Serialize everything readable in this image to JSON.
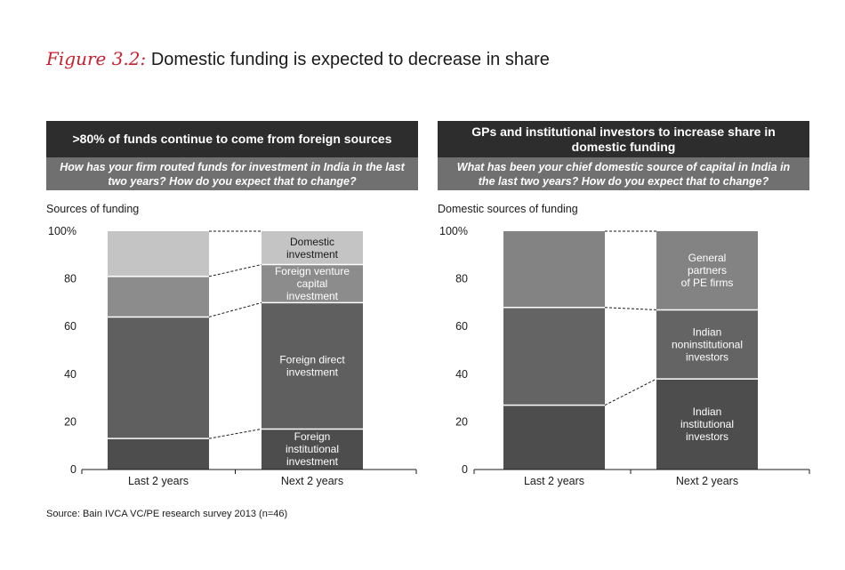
{
  "figure": {
    "label": "Figure 3.2:",
    "title": "Domestic funding is expected to decrease in share"
  },
  "panels": [
    {
      "header": ">80% of funds continue to come from foreign sources",
      "question": "How has your firm routed funds for investment in India in the last two years? How do you expect that to change?"
    },
    {
      "header": "GPs and institutional investors to increase share in domestic funding",
      "question": "What has been your chief domestic source of capital in India in the last two years? How do you expect that to change?"
    }
  ],
  "source": "Source: Bain IVCA VC/PE research survey 2013 (n=46)",
  "chart_data": [
    {
      "type": "bar",
      "stacked": true,
      "ylabel": "Sources of funding",
      "ylim": [
        0,
        100
      ],
      "ytick_labels": [
        "0",
        "20",
        "40",
        "60",
        "80",
        "100%"
      ],
      "categories": [
        "Last 2 years",
        "Next 2 years"
      ],
      "series": [
        {
          "name": "Foreign institutional investment",
          "values": [
            13,
            17
          ],
          "color": "#4d4d4d",
          "label_lines": [
            "Foreign",
            "institutional",
            "investment"
          ]
        },
        {
          "name": "Foreign direct investment",
          "values": [
            51,
            53
          ],
          "color": "#5f5f5f",
          "label_lines": [
            "Foreign direct",
            "investment"
          ]
        },
        {
          "name": "Foreign venture capital investment",
          "values": [
            17,
            16
          ],
          "color": "#8c8c8c",
          "label_lines": [
            "Foreign venture",
            "capital",
            "investment"
          ]
        },
        {
          "name": "Domestic investment",
          "values": [
            19,
            14
          ],
          "color": "#c4c4c4",
          "label_lines": [
            "Domestic",
            "investment"
          ]
        }
      ]
    },
    {
      "type": "bar",
      "stacked": true,
      "ylabel": "Domestic sources of funding",
      "ylim": [
        0,
        100
      ],
      "ytick_labels": [
        "0",
        "20",
        "40",
        "60",
        "80",
        "100%"
      ],
      "categories": [
        "Last 2 years",
        "Next 2 years"
      ],
      "series": [
        {
          "name": "Indian institutional investors",
          "values": [
            27,
            38
          ],
          "color": "#4d4d4d",
          "label_lines": [
            "Indian",
            "institutional",
            "investors"
          ]
        },
        {
          "name": "Indian noninstitutional investors",
          "values": [
            41,
            29
          ],
          "color": "#646464",
          "label_lines": [
            "Indian",
            "noninstitutional",
            "investors"
          ]
        },
        {
          "name": "General partners of PE firms",
          "values": [
            32,
            33
          ],
          "color": "#838383",
          "label_lines": [
            "General",
            "partners",
            "of PE firms"
          ]
        }
      ]
    }
  ]
}
